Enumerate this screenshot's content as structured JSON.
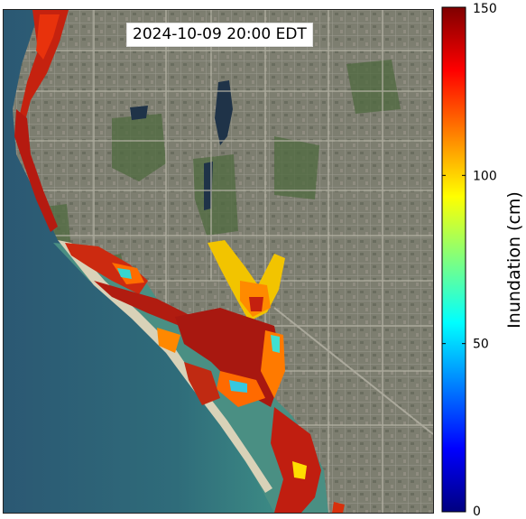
{
  "timestamp": "2024-10-09 20:00 EDT",
  "colorbar": {
    "label": "Inundation (cm)",
    "min": 0,
    "max": 150,
    "ticks": [
      0,
      50,
      100,
      150
    ],
    "colormap": "jet",
    "stops": [
      "#00007f",
      "#0000ff",
      "#007fff",
      "#00ffff",
      "#7fff7f",
      "#ffff00",
      "#ff7f00",
      "#ff0000",
      "#7f0000"
    ]
  },
  "map": {
    "basemap": "satellite imagery",
    "colors": {
      "ocean_deep": "#2f5f78",
      "ocean_shallow": "#3f8f85",
      "land": "#7a7c6c",
      "vegetation": "#4f6a3f",
      "lake": "#1f3348",
      "flood_high": "#b01a10",
      "flood_mid": "#ff6a00",
      "flood_low": "#ffd500",
      "flood_shallow": "#30d0d0"
    }
  }
}
